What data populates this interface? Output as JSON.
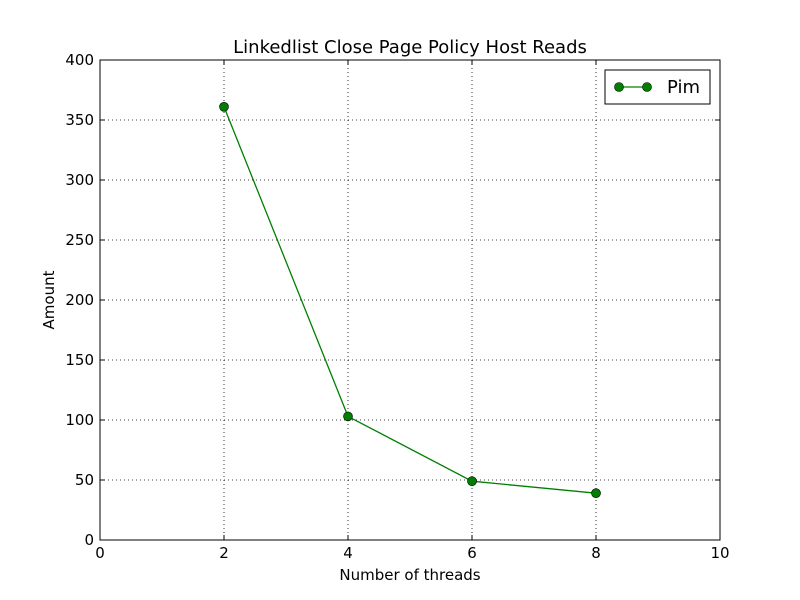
{
  "chart_data": {
    "type": "line",
    "title": "Linkedlist Close Page Policy Host Reads",
    "xlabel": "Number of threads",
    "ylabel": "Amount",
    "xlim": [
      0,
      10
    ],
    "ylim": [
      0,
      400
    ],
    "xticks": [
      0,
      2,
      4,
      6,
      8,
      10
    ],
    "yticks": [
      0,
      50,
      100,
      150,
      200,
      250,
      300,
      350,
      400
    ],
    "grid": true,
    "legend_position": "top-right",
    "series": [
      {
        "name": "Pim",
        "color": "#008000",
        "marker": "circle",
        "x": [
          2,
          4,
          6,
          8
        ],
        "y": [
          361,
          103,
          49,
          39
        ]
      }
    ]
  }
}
